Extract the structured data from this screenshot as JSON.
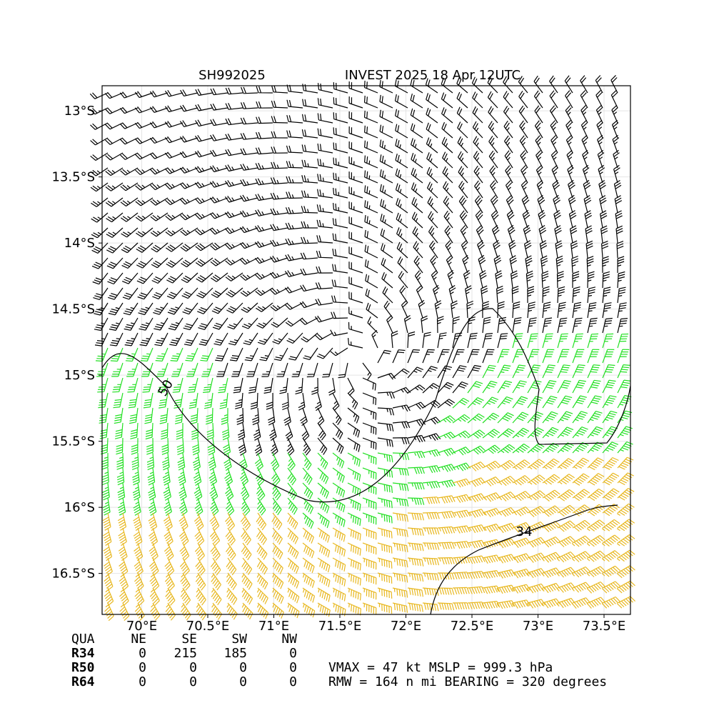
{
  "map": {
    "title_left": "SH992025",
    "title_right": "INVEST 2025 18 Apr 12UTC",
    "xlim": [
      69.7,
      73.7
    ],
    "ylim": [
      -16.81,
      -12.81
    ],
    "xticks": [
      {
        "value": 70,
        "label": "70°E"
      },
      {
        "value": 70.5,
        "label": "70.5°E"
      },
      {
        "value": 71,
        "label": "71°E"
      },
      {
        "value": 71.5,
        "label": "71.5°E"
      },
      {
        "value": 72,
        "label": "72°E"
      },
      {
        "value": 72.5,
        "label": "72.5°E"
      },
      {
        "value": 73,
        "label": "73°E"
      },
      {
        "value": 73.5,
        "label": "73.5°E"
      }
    ],
    "yticks": [
      {
        "value": -13,
        "label": "13°S"
      },
      {
        "value": -13.5,
        "label": "13.5°S"
      },
      {
        "value": -14,
        "label": "14°S"
      },
      {
        "value": -14.5,
        "label": "14.5°S"
      },
      {
        "value": -15,
        "label": "15°S"
      },
      {
        "value": -15.5,
        "label": "15.5°S"
      },
      {
        "value": -16,
        "label": "16°S"
      },
      {
        "value": -16.5,
        "label": "16.5°S"
      }
    ],
    "grid": true,
    "contour_labels": [
      "34",
      "50"
    ]
  },
  "table": {
    "header": [
      "QUA",
      "NE",
      "SE",
      "SW",
      "NW"
    ],
    "rows": [
      [
        "R34",
        "0",
        "215",
        "185",
        "0"
      ],
      [
        "R50",
        "0",
        "0",
        "0",
        "0"
      ],
      [
        "R64",
        "0",
        "0",
        "0",
        "0"
      ]
    ]
  },
  "stats": [
    "VMAX =  47 kt MSLP = 999.3 hPa",
    "RMW = 164 n mi BEARING = 320 degrees"
  ]
}
